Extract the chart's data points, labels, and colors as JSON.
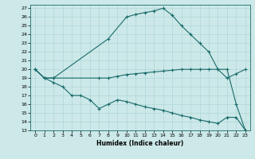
{
  "xlabel": "Humidex (Indice chaleur)",
  "bg_color": "#cce8e8",
  "line_color": "#1a6b6b",
  "grid_color": "#aad4d4",
  "xlim": [
    -0.5,
    23.5
  ],
  "ylim": [
    13,
    27.4
  ],
  "yticks": [
    13,
    14,
    15,
    16,
    17,
    18,
    19,
    20,
    21,
    22,
    23,
    24,
    25,
    26,
    27
  ],
  "xticks": [
    0,
    1,
    2,
    3,
    4,
    5,
    6,
    7,
    8,
    9,
    10,
    11,
    12,
    13,
    14,
    15,
    16,
    17,
    18,
    19,
    20,
    21,
    22,
    23
  ],
  "line1_x": [
    0,
    1,
    2,
    8,
    10,
    11,
    12,
    13,
    14,
    15,
    16,
    17,
    18,
    19,
    20,
    21,
    22,
    23
  ],
  "line1_y": [
    20,
    19,
    19,
    23.5,
    26,
    26.3,
    26.5,
    26.7,
    27,
    26.2,
    25,
    24,
    23,
    22,
    20,
    20,
    16,
    13
  ],
  "line2_x": [
    0,
    1,
    2,
    7,
    8,
    9,
    10,
    11,
    12,
    13,
    14,
    15,
    16,
    17,
    18,
    19,
    20,
    21,
    22,
    23
  ],
  "line2_y": [
    20,
    19,
    19,
    19,
    19,
    19.2,
    19.4,
    19.5,
    19.6,
    19.7,
    19.8,
    19.9,
    20,
    20,
    20,
    20,
    20,
    19,
    19.5,
    20
  ],
  "line3_x": [
    0,
    1,
    2,
    3,
    4,
    5,
    6,
    7,
    8,
    9,
    10,
    11,
    12,
    13,
    14,
    15,
    16,
    17,
    18,
    19,
    20,
    21,
    22,
    23
  ],
  "line3_y": [
    20,
    19,
    18.5,
    18,
    17,
    17,
    16.5,
    15.5,
    16,
    16.5,
    16.3,
    16.0,
    15.7,
    15.5,
    15.3,
    15.0,
    14.7,
    14.5,
    14.2,
    14.0,
    13.8,
    14.5,
    14.5,
    13
  ]
}
